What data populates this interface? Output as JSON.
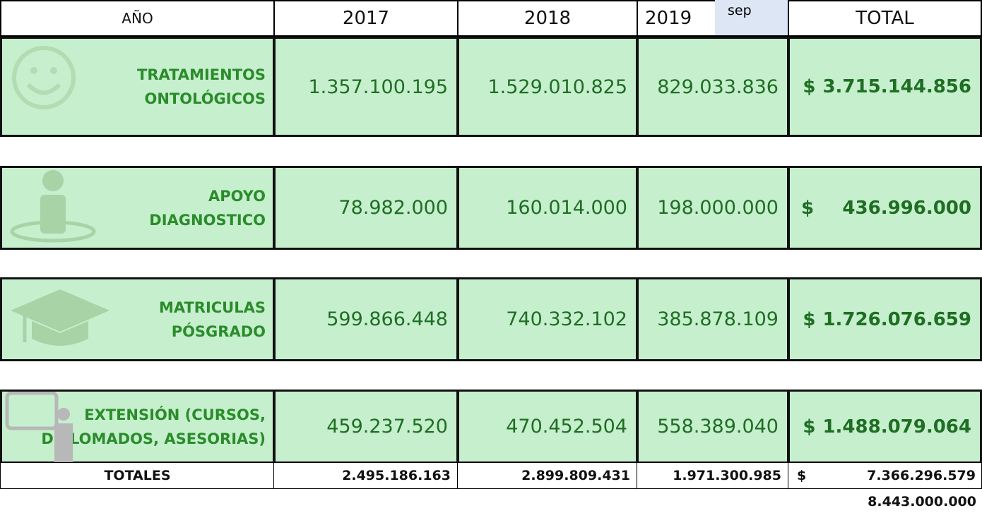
{
  "table": {
    "header": {
      "label": "AÑO",
      "years": [
        "2017",
        "2018",
        "2019"
      ],
      "note": "sep",
      "total": "TOTAL"
    },
    "rows": [
      {
        "label": [
          "TRATAMIENTOS",
          "ONTOLÓGICOS"
        ],
        "values": [
          "1.357.100.195",
          "1.529.010.825",
          "829.033.836"
        ],
        "currency": "$",
        "total": "3.715.144.856"
      },
      {
        "label": [
          "APOYO",
          "DIAGNOSTICO"
        ],
        "values": [
          "78.982.000",
          "160.014.000",
          "198.000.000"
        ],
        "currency": "$",
        "total": "436.996.000"
      },
      {
        "label": [
          "MATRICULAS",
          "PÓSGRADO"
        ],
        "values": [
          "599.866.448",
          "740.332.102",
          "385.878.109"
        ],
        "currency": "$",
        "total": "1.726.076.659"
      },
      {
        "label": [
          "EXTENSIÓN (CURSOS,",
          "DIPLOMADOS, ASESORIAS)"
        ],
        "values": [
          "459.237.520",
          "470.452.504",
          "558.389.040"
        ],
        "currency": "$",
        "total": "1.488.079.064"
      }
    ],
    "totals": {
      "label": "TOTALES",
      "values": [
        "2.495.186.163",
        "2.899.809.431",
        "1.971.300.985"
      ],
      "currency": "$",
      "total": "7.366.296.579"
    },
    "extra": "8.443.000.000"
  }
}
